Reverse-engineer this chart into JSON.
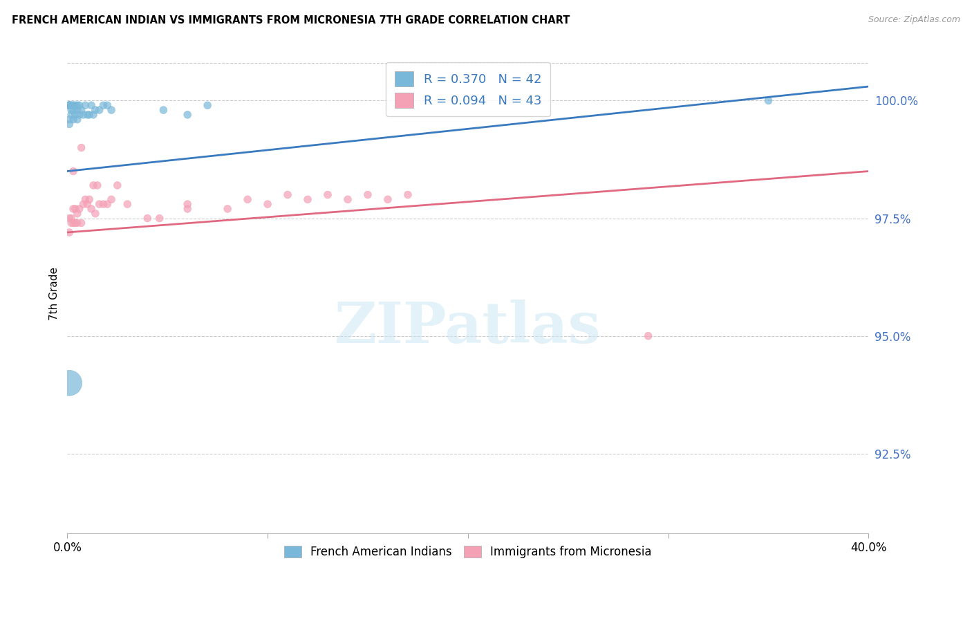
{
  "title": "FRENCH AMERICAN INDIAN VS IMMIGRANTS FROM MICRONESIA 7TH GRADE CORRELATION CHART",
  "source": "Source: ZipAtlas.com",
  "blue_label": "French American Indians",
  "pink_label": "Immigrants from Micronesia",
  "blue_color": "#7ab8d9",
  "pink_color": "#f4a0b5",
  "blue_line_color": "#3a7abf",
  "pink_line_color": "#e06880",
  "blue_R": 0.37,
  "blue_N": 42,
  "pink_R": 0.094,
  "pink_N": 43,
  "ylabel": "7th Grade",
  "x_min": 0.0,
  "x_max": 0.4,
  "y_min": 0.908,
  "y_max": 1.01,
  "right_yticks": [
    1.0,
    0.975,
    0.95,
    0.925
  ],
  "right_yticklabels": [
    "100.0%",
    "97.5%",
    "95.0%",
    "92.5%"
  ],
  "watermark": "ZIPatlas",
  "blue_x": [
    0.001,
    0.001,
    0.001,
    0.001,
    0.001,
    0.001,
    0.001,
    0.001,
    0.002,
    0.002,
    0.002,
    0.003,
    0.003,
    0.003,
    0.004,
    0.004,
    0.005,
    0.005,
    0.006,
    0.006,
    0.007,
    0.008,
    0.009,
    0.01,
    0.011,
    0.012,
    0.013,
    0.014,
    0.016,
    0.018,
    0.02,
    0.022,
    0.048,
    0.06,
    0.07,
    0.001,
    0.001,
    0.002,
    0.003,
    0.005,
    0.35,
    0.001
  ],
  "blue_y": [
    0.999,
    0.999,
    0.999,
    0.999,
    0.999,
    0.999,
    0.999,
    0.999,
    0.999,
    0.999,
    0.997,
    0.999,
    0.999,
    0.998,
    0.999,
    0.997,
    0.998,
    0.999,
    0.997,
    0.999,
    0.998,
    0.997,
    0.999,
    0.997,
    0.997,
    0.999,
    0.997,
    0.998,
    0.998,
    0.999,
    0.999,
    0.998,
    0.998,
    0.997,
    0.999,
    0.996,
    0.995,
    0.998,
    0.996,
    0.996,
    1.0,
    0.94
  ],
  "blue_sizes": [
    60,
    60,
    60,
    60,
    60,
    60,
    60,
    60,
    60,
    60,
    60,
    60,
    60,
    60,
    60,
    60,
    60,
    60,
    60,
    60,
    60,
    60,
    60,
    60,
    60,
    60,
    60,
    60,
    60,
    60,
    60,
    60,
    60,
    60,
    60,
    60,
    60,
    60,
    60,
    60,
    60,
    700
  ],
  "pink_x": [
    0.001,
    0.001,
    0.002,
    0.002,
    0.003,
    0.003,
    0.004,
    0.004,
    0.005,
    0.005,
    0.006,
    0.007,
    0.008,
    0.009,
    0.01,
    0.011,
    0.012,
    0.013,
    0.014,
    0.015,
    0.016,
    0.018,
    0.02,
    0.022,
    0.025,
    0.03,
    0.04,
    0.046,
    0.06,
    0.06,
    0.08,
    0.09,
    0.1,
    0.11,
    0.12,
    0.13,
    0.14,
    0.15,
    0.16,
    0.17,
    0.29,
    0.003,
    0.007
  ],
  "pink_y": [
    0.975,
    0.972,
    0.975,
    0.974,
    0.977,
    0.974,
    0.977,
    0.974,
    0.976,
    0.974,
    0.977,
    0.974,
    0.978,
    0.979,
    0.978,
    0.979,
    0.977,
    0.982,
    0.976,
    0.982,
    0.978,
    0.978,
    0.978,
    0.979,
    0.982,
    0.978,
    0.975,
    0.975,
    0.977,
    0.978,
    0.977,
    0.979,
    0.978,
    0.98,
    0.979,
    0.98,
    0.979,
    0.98,
    0.979,
    0.98,
    0.95,
    0.985,
    0.99
  ],
  "pink_sizes": [
    60,
    60,
    60,
    60,
    60,
    60,
    60,
    60,
    60,
    60,
    60,
    60,
    60,
    60,
    60,
    60,
    60,
    60,
    60,
    60,
    60,
    60,
    60,
    60,
    60,
    60,
    60,
    60,
    60,
    60,
    60,
    60,
    60,
    60,
    60,
    60,
    60,
    60,
    60,
    60,
    60,
    60,
    60
  ]
}
